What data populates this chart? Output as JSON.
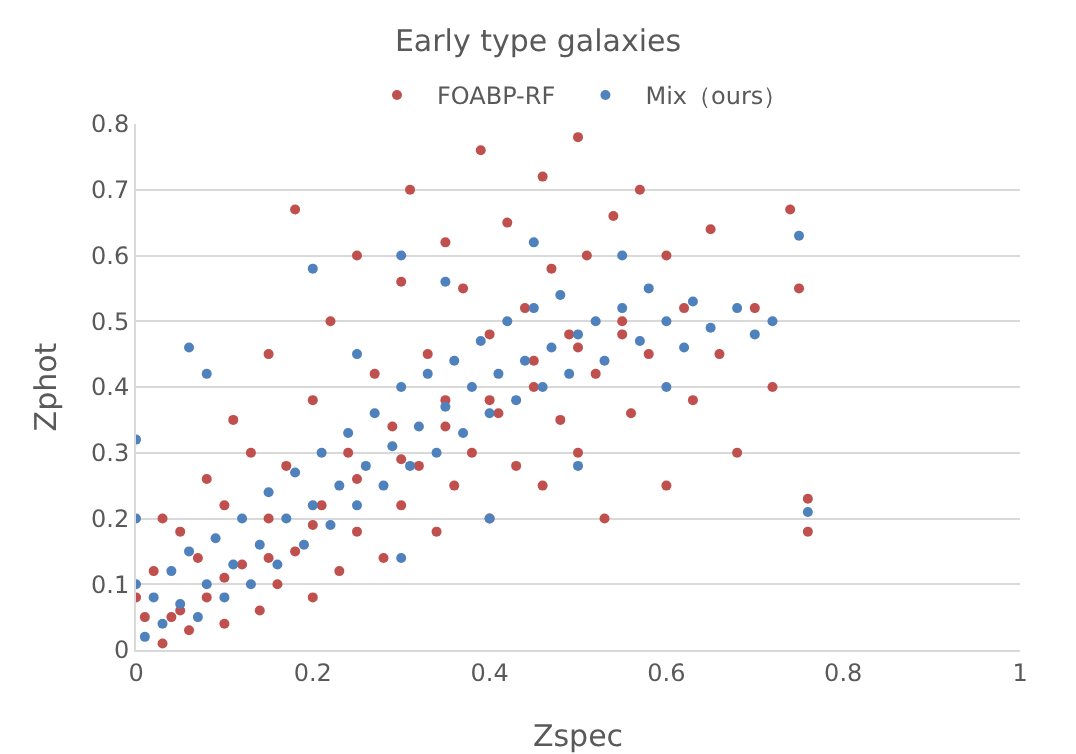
{
  "chart_data": {
    "type": "scatter",
    "title": "Early type galaxies",
    "xlabel": "Zspec",
    "ylabel": "Zphot",
    "xlim": [
      0,
      1
    ],
    "xticks": [
      0,
      0.2,
      0.4,
      0.6,
      0.8,
      1
    ],
    "ylim": [
      0,
      0.8
    ],
    "yticks": [
      0,
      0.1,
      0.2,
      0.3,
      0.4,
      0.5,
      0.6,
      0.7,
      0.8
    ],
    "grid": "y",
    "legend": "top",
    "marker": "circle",
    "series": [
      {
        "name": "FOABP-RF",
        "color": "#c0504d",
        "x": [
          0.01,
          0.02,
          0.03,
          0.04,
          0.05,
          0.06,
          0.07,
          0.08,
          0.08,
          0.1,
          0.1,
          0.11,
          0.12,
          0.13,
          0.14,
          0.15,
          0.15,
          0.16,
          0.17,
          0.18,
          0.18,
          0.2,
          0.2,
          0.21,
          0.22,
          0.23,
          0.24,
          0.25,
          0.25,
          0.27,
          0.28,
          0.29,
          0.3,
          0.3,
          0.31,
          0.32,
          0.33,
          0.34,
          0.35,
          0.35,
          0.36,
          0.37,
          0.38,
          0.39,
          0.4,
          0.4,
          0.41,
          0.42,
          0.43,
          0.44,
          0.45,
          0.46,
          0.46,
          0.47,
          0.48,
          0.49,
          0.5,
          0.5,
          0.51,
          0.52,
          0.53,
          0.54,
          0.55,
          0.56,
          0.57,
          0.58,
          0.6,
          0.6,
          0.62,
          0.63,
          0.65,
          0.66,
          0.68,
          0.7,
          0.72,
          0.74,
          0.75,
          0.76,
          0.76,
          0.05,
          0.1,
          0.15,
          0.2,
          0.25,
          0.3,
          0.35,
          0.4,
          0.45,
          0.5,
          0.55,
          0.03,
          0.0
        ],
        "values": [
          0.05,
          0.12,
          0.2,
          0.05,
          0.18,
          0.03,
          0.14,
          0.26,
          0.08,
          0.22,
          0.04,
          0.35,
          0.13,
          0.3,
          0.06,
          0.2,
          0.45,
          0.1,
          0.28,
          0.67,
          0.15,
          0.38,
          0.08,
          0.22,
          0.5,
          0.12,
          0.3,
          0.6,
          0.18,
          0.42,
          0.14,
          0.34,
          0.56,
          0.22,
          0.7,
          0.28,
          0.45,
          0.18,
          0.62,
          0.38,
          0.25,
          0.55,
          0.3,
          0.76,
          0.48,
          0.2,
          0.36,
          0.65,
          0.28,
          0.52,
          0.4,
          0.72,
          0.25,
          0.58,
          0.35,
          0.48,
          0.78,
          0.3,
          0.6,
          0.42,
          0.2,
          0.66,
          0.5,
          0.36,
          0.7,
          0.45,
          0.6,
          0.25,
          0.52,
          0.38,
          0.64,
          0.45,
          0.3,
          0.52,
          0.4,
          0.67,
          0.55,
          0.18,
          0.23,
          0.06,
          0.11,
          0.14,
          0.19,
          0.26,
          0.29,
          0.34,
          0.38,
          0.44,
          0.46,
          0.48,
          0.01,
          0.08
        ]
      },
      {
        "name": "Mix（ours）",
        "color": "#4f81bd",
        "x": [
          0,
          0,
          0,
          0.01,
          0.02,
          0.03,
          0.04,
          0.05,
          0.06,
          0.07,
          0.08,
          0.09,
          0.1,
          0.11,
          0.12,
          0.13,
          0.14,
          0.15,
          0.16,
          0.17,
          0.18,
          0.19,
          0.2,
          0.21,
          0.22,
          0.23,
          0.24,
          0.25,
          0.26,
          0.27,
          0.28,
          0.29,
          0.3,
          0.31,
          0.32,
          0.33,
          0.34,
          0.35,
          0.36,
          0.37,
          0.38,
          0.39,
          0.4,
          0.41,
          0.42,
          0.43,
          0.44,
          0.45,
          0.46,
          0.47,
          0.48,
          0.49,
          0.5,
          0.52,
          0.53,
          0.55,
          0.57,
          0.58,
          0.6,
          0.62,
          0.63,
          0.65,
          0.68,
          0.7,
          0.72,
          0.75,
          0.76,
          0.06,
          0.08,
          0.2,
          0.3,
          0.45,
          0.55,
          0.6,
          0.4,
          0.3,
          0.5,
          0.25,
          0.35
        ],
        "values": [
          0.32,
          0.2,
          0.1,
          0.02,
          0.08,
          0.04,
          0.12,
          0.07,
          0.15,
          0.05,
          0.1,
          0.17,
          0.08,
          0.13,
          0.2,
          0.1,
          0.16,
          0.24,
          0.13,
          0.2,
          0.27,
          0.16,
          0.22,
          0.3,
          0.19,
          0.25,
          0.33,
          0.22,
          0.28,
          0.36,
          0.25,
          0.31,
          0.4,
          0.28,
          0.34,
          0.42,
          0.3,
          0.37,
          0.44,
          0.33,
          0.4,
          0.47,
          0.36,
          0.42,
          0.5,
          0.38,
          0.44,
          0.52,
          0.4,
          0.46,
          0.54,
          0.42,
          0.48,
          0.5,
          0.44,
          0.52,
          0.47,
          0.55,
          0.5,
          0.46,
          0.53,
          0.49,
          0.52,
          0.48,
          0.5,
          0.63,
          0.21,
          0.46,
          0.42,
          0.58,
          0.6,
          0.62,
          0.6,
          0.4,
          0.2,
          0.14,
          0.28,
          0.45,
          0.56
        ]
      }
    ]
  }
}
